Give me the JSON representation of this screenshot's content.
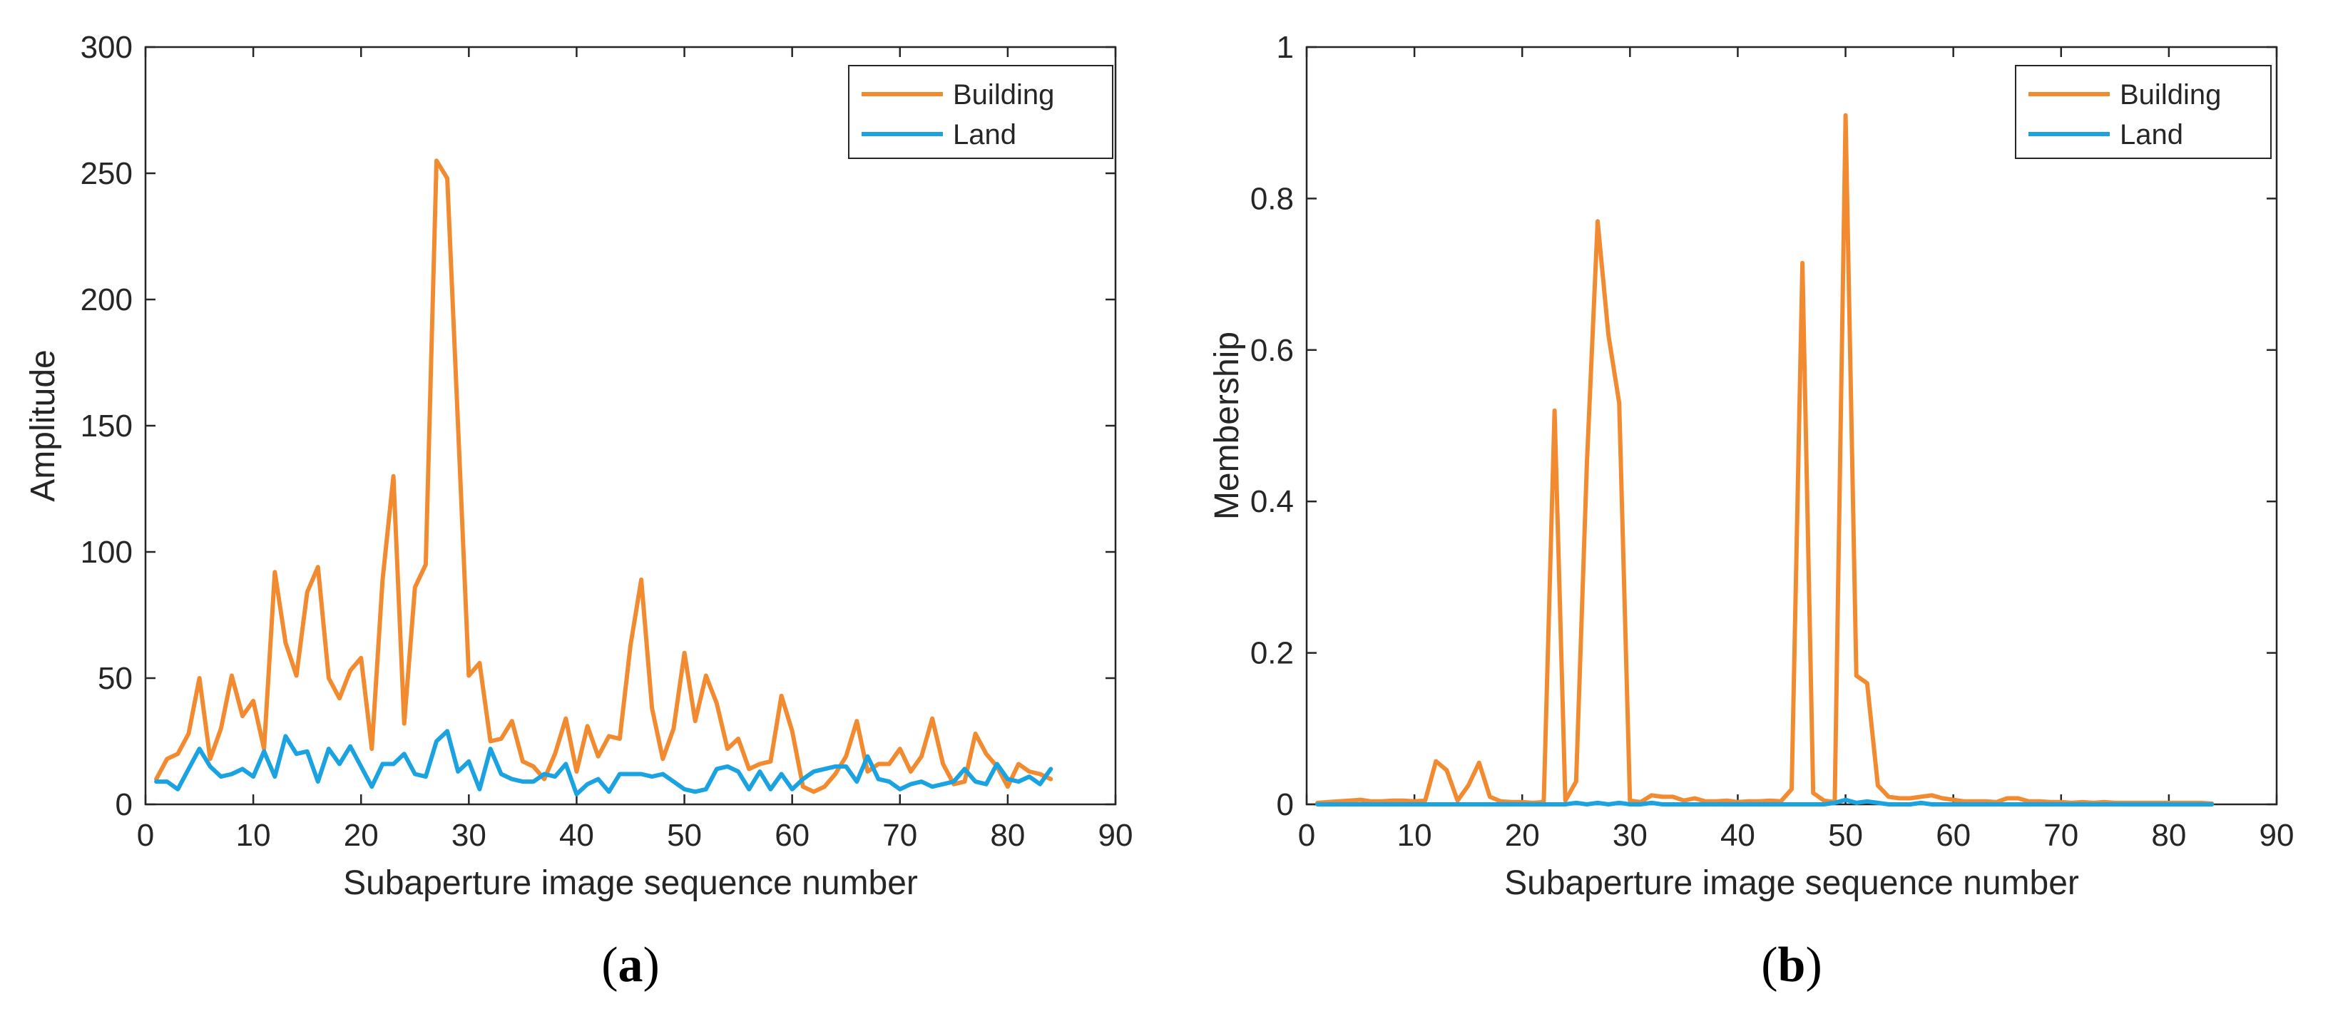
{
  "chart_data": [
    {
      "type": "line",
      "panel": "a",
      "caption_letter": "a",
      "xlabel": "Subaperture image sequence number",
      "ylabel": "Amplitude",
      "xlim": [
        0,
        90
      ],
      "ylim": [
        0,
        300
      ],
      "xticks": [
        0,
        10,
        20,
        30,
        40,
        50,
        60,
        70,
        80,
        90
      ],
      "yticks": [
        0,
        50,
        100,
        150,
        200,
        250,
        300
      ],
      "xtick_labels": [
        "0",
        "10",
        "20",
        "30",
        "40",
        "50",
        "60",
        "70",
        "80",
        "90"
      ],
      "ytick_labels": [
        "0",
        "50",
        "100",
        "150",
        "200",
        "250",
        "300"
      ],
      "legend_position": "top-right",
      "x": [
        1,
        2,
        3,
        4,
        5,
        6,
        7,
        8,
        9,
        10,
        11,
        12,
        13,
        14,
        15,
        16,
        17,
        18,
        19,
        20,
        21,
        22,
        23,
        24,
        25,
        26,
        27,
        28,
        29,
        30,
        31,
        32,
        33,
        34,
        35,
        36,
        37,
        38,
        39,
        40,
        41,
        42,
        43,
        44,
        45,
        46,
        47,
        48,
        49,
        50,
        51,
        52,
        53,
        54,
        55,
        56,
        57,
        58,
        59,
        60,
        61,
        62,
        63,
        64,
        65,
        66,
        67,
        68,
        69,
        70,
        71,
        72,
        73,
        74,
        75,
        76,
        77,
        78,
        79,
        80,
        81,
        82,
        83,
        84
      ],
      "series": [
        {
          "name": "Building",
          "color": "#F28A30",
          "values": [
            10,
            18,
            20,
            28,
            50,
            18,
            30,
            51,
            35,
            41,
            22,
            92,
            64,
            51,
            84,
            94,
            50,
            42,
            53,
            58,
            22,
            89,
            130,
            32,
            86,
            95,
            255,
            248,
            150,
            51,
            56,
            25,
            26,
            33,
            17,
            15,
            10,
            20,
            34,
            13,
            31,
            19,
            27,
            26,
            63,
            89,
            38,
            18,
            30,
            60,
            33,
            51,
            40,
            22,
            26,
            14,
            16,
            17,
            43,
            29,
            7,
            5,
            7,
            12,
            19,
            33,
            13,
            16,
            16,
            22,
            13,
            19,
            34,
            16,
            8,
            9,
            28,
            20,
            15,
            7,
            16,
            13,
            12,
            10
          ]
        },
        {
          "name": "Land",
          "color": "#1AA3E0",
          "values": [
            9,
            9,
            6,
            14,
            22,
            15,
            11,
            12,
            14,
            11,
            21,
            11,
            27,
            20,
            21,
            9,
            22,
            16,
            23,
            15,
            7,
            16,
            16,
            20,
            12,
            11,
            25,
            29,
            13,
            17,
            6,
            22,
            12,
            10,
            9,
            9,
            12,
            11,
            16,
            4,
            8,
            10,
            5,
            12,
            12,
            12,
            11,
            12,
            9,
            6,
            5,
            6,
            14,
            15,
            13,
            6,
            13,
            6,
            12,
            6,
            10,
            13,
            14,
            15,
            15,
            9,
            19,
            10,
            9,
            6,
            8,
            9,
            7,
            8,
            9,
            14,
            9,
            8,
            16,
            10,
            9,
            11,
            8,
            14
          ]
        }
      ]
    },
    {
      "type": "line",
      "panel": "b",
      "caption_letter": "b",
      "xlabel": "Subaperture image sequence number",
      "ylabel": "Membership",
      "xlim": [
        0,
        90
      ],
      "ylim": [
        0,
        1
      ],
      "xticks": [
        0,
        10,
        20,
        30,
        40,
        50,
        60,
        70,
        80,
        90
      ],
      "yticks": [
        0,
        0.2,
        0.4,
        0.6,
        0.8,
        1
      ],
      "xtick_labels": [
        "0",
        "10",
        "20",
        "30",
        "40",
        "50",
        "60",
        "70",
        "80",
        "90"
      ],
      "ytick_labels": [
        "0",
        "0.2",
        "0.4",
        "0.6",
        "0.8",
        "1"
      ],
      "legend_position": "top-right",
      "x": [
        1,
        2,
        3,
        4,
        5,
        6,
        7,
        8,
        9,
        10,
        11,
        12,
        13,
        14,
        15,
        16,
        17,
        18,
        19,
        20,
        21,
        22,
        23,
        24,
        25,
        26,
        27,
        28,
        29,
        30,
        31,
        32,
        33,
        34,
        35,
        36,
        37,
        38,
        39,
        40,
        41,
        42,
        43,
        44,
        45,
        46,
        47,
        48,
        49,
        50,
        51,
        52,
        53,
        54,
        55,
        56,
        57,
        58,
        59,
        60,
        61,
        62,
        63,
        64,
        65,
        66,
        67,
        68,
        69,
        70,
        71,
        72,
        73,
        74,
        75,
        76,
        77,
        78,
        79,
        80,
        81,
        82,
        83,
        84
      ],
      "series": [
        {
          "name": "Building",
          "color": "#F28A30",
          "values": [
            0.002,
            0.003,
            0.004,
            0.005,
            0.006,
            0.004,
            0.004,
            0.005,
            0.005,
            0.004,
            0.005,
            0.057,
            0.045,
            0.005,
            0.025,
            0.055,
            0.01,
            0.004,
            0.003,
            0.003,
            0.002,
            0.003,
            0.52,
            0.005,
            0.03,
            0.45,
            0.77,
            0.62,
            0.53,
            0.005,
            0.003,
            0.012,
            0.01,
            0.01,
            0.005,
            0.008,
            0.004,
            0.004,
            0.005,
            0.003,
            0.004,
            0.004,
            0.005,
            0.004,
            0.02,
            0.715,
            0.015,
            0.005,
            0.003,
            0.91,
            0.17,
            0.16,
            0.025,
            0.01,
            0.008,
            0.008,
            0.01,
            0.012,
            0.008,
            0.006,
            0.004,
            0.004,
            0.004,
            0.003,
            0.008,
            0.008,
            0.004,
            0.004,
            0.003,
            0.003,
            0.002,
            0.003,
            0.002,
            0.003,
            0.002,
            0.002,
            0.002,
            0.002,
            0.002,
            0.002,
            0.002,
            0.002,
            0.002,
            0.001
          ]
        },
        {
          "name": "Land",
          "color": "#1AA3E0",
          "values": [
            0,
            0,
            0,
            0,
            0,
            0,
            0,
            0,
            0,
            0,
            0,
            0,
            0,
            0,
            0,
            0,
            0,
            0,
            0,
            0,
            0,
            0,
            0,
            0,
            0.002,
            0,
            0.002,
            0,
            0.002,
            0,
            0,
            0.002,
            0,
            0,
            0,
            0,
            0,
            0,
            0,
            0,
            0,
            0,
            0,
            0,
            0,
            0,
            0,
            0,
            0.002,
            0.006,
            0.002,
            0.004,
            0.002,
            0,
            0,
            0,
            0.002,
            0,
            0,
            0,
            0,
            0,
            0,
            0,
            0,
            0,
            0,
            0,
            0,
            0,
            0,
            0,
            0,
            0,
            0,
            0,
            0,
            0,
            0,
            0,
            0,
            0,
            0,
            0
          ]
        }
      ]
    }
  ]
}
